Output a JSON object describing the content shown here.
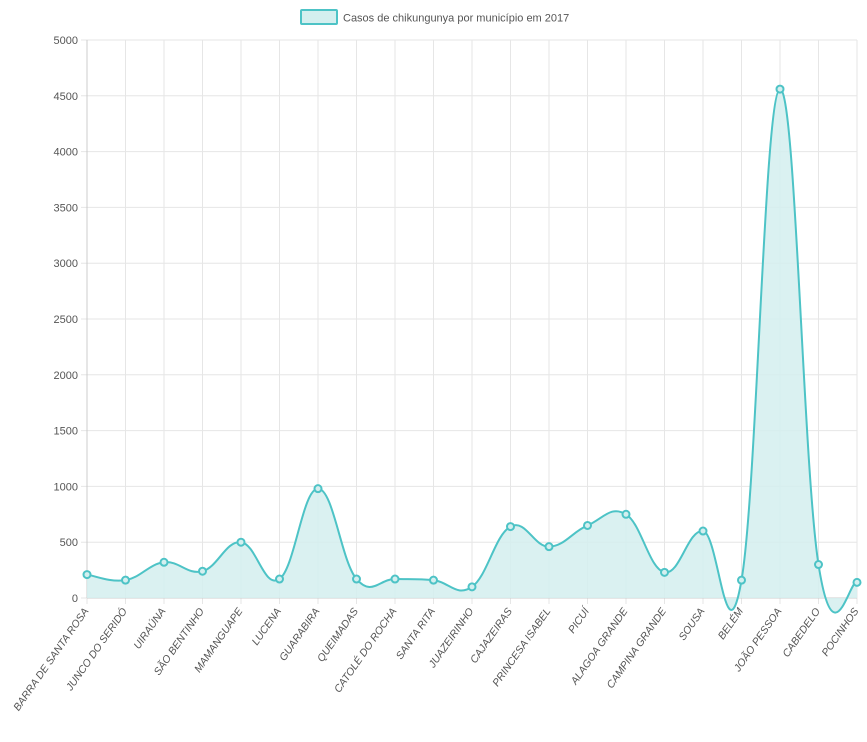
{
  "chart_data": {
    "type": "area",
    "legend": {
      "label": "Casos de chikungunya por município em 2017",
      "position": "top"
    },
    "colors": {
      "line": "#4dc3c6",
      "fill": "#d4efef",
      "grid": "#e6e6e6",
      "text": "#555555"
    },
    "grid": true,
    "ylim": [
      0,
      5000
    ],
    "yticks": [
      0,
      500,
      1000,
      1500,
      2000,
      2500,
      3000,
      3500,
      4000,
      4500,
      5000
    ],
    "categories": [
      "BARRA DE SANTA ROSA",
      "JUNCO DO SERIDÓ",
      "UIRAÚNA",
      "SÃO BENTINHO",
      "MAMANGUAPE",
      "LUCENA",
      "GUARABIRA",
      "QUEIMADAS",
      "CATOLÉ DO ROCHA",
      "SANTA RITA",
      "JUAZEIRINHO",
      "CAJAZEIRAS",
      "PRINCESA ISABEL",
      "PICUÍ",
      "ALAGOA GRANDE",
      "CAMPINA GRANDE",
      "SOUSA",
      "BELÉM",
      "JOÃO PESSOA",
      "CABEDELO",
      "POCINHOS"
    ],
    "series": [
      {
        "name": "Casos de chikungunya por município em 2017",
        "values": [
          210,
          160,
          320,
          240,
          500,
          170,
          980,
          170,
          170,
          160,
          100,
          640,
          460,
          650,
          750,
          230,
          600,
          160,
          4560,
          300,
          140
        ]
      }
    ]
  }
}
